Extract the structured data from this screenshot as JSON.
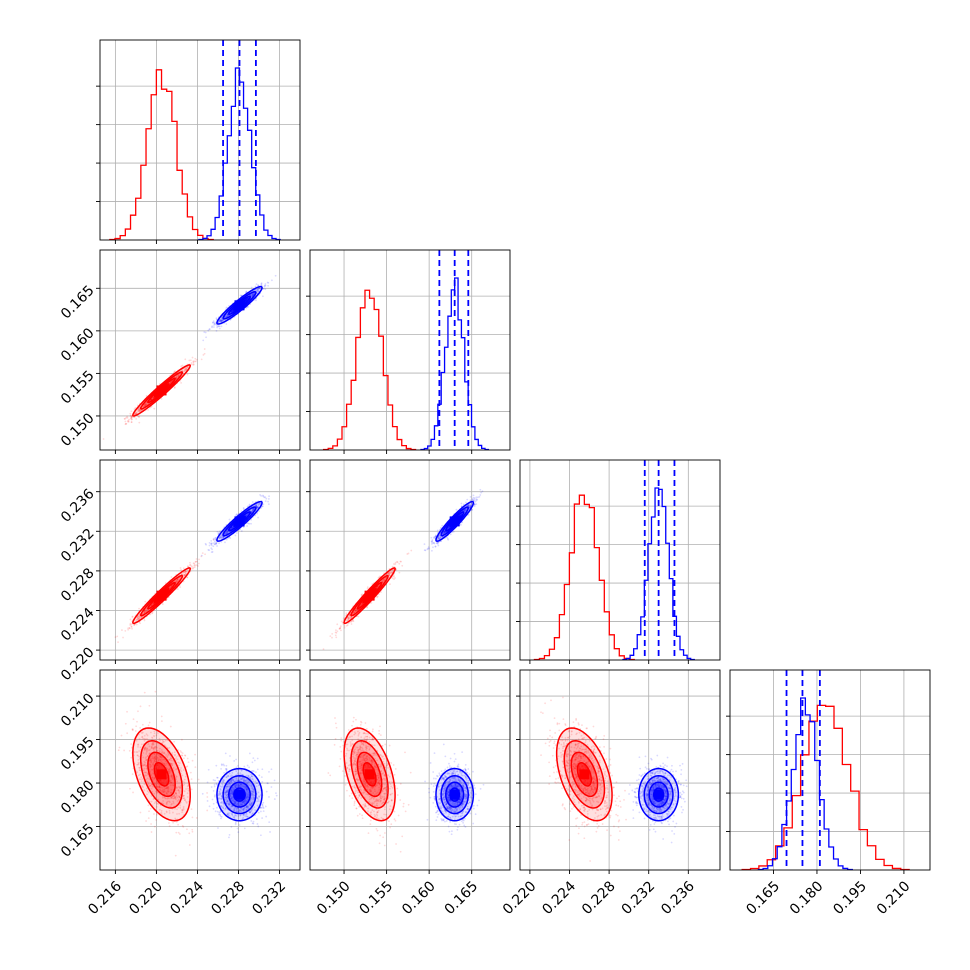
{
  "chart_data": {
    "type": "corner",
    "parameters": [
      "",
      "",
      "",
      ""
    ],
    "series": [
      {
        "name": "",
        "color": "#ff0000",
        "means": [
          0.2205,
          0.153,
          0.2255,
          0.183
        ],
        "sds": [
          0.0014,
          0.0015,
          0.0014,
          0.008
        ],
        "corr": [
          [
            1.0,
            0.97,
            0.97,
            -0.45
          ],
          [
            0.97,
            1.0,
            0.97,
            -0.45
          ],
          [
            0.97,
            0.97,
            1.0,
            -0.45
          ],
          [
            -0.45,
            -0.45,
            -0.45,
            1.0
          ]
        ]
      },
      {
        "name": "",
        "color": "#0000ff",
        "means": [
          0.2281,
          0.163,
          0.233,
          0.176
        ],
        "sds": [
          0.0011,
          0.0011,
          0.001,
          0.0045
        ],
        "corr": [
          [
            1.0,
            0.94,
            0.94,
            0.0
          ],
          [
            0.94,
            1.0,
            0.94,
            0.0
          ],
          [
            0.94,
            0.94,
            1.0,
            0.0
          ],
          [
            0.0,
            0.0,
            0.0,
            1.0
          ]
        ]
      }
    ],
    "quantile_lines": {
      "series_color": "#0000ff",
      "values": [
        [
          0.2265,
          0.2281,
          0.2297
        ],
        [
          0.1612,
          0.163,
          0.1646
        ],
        [
          0.2316,
          0.233,
          0.2346
        ],
        [
          0.1695,
          0.175,
          0.181
        ]
      ]
    },
    "axes": [
      {
        "range": [
          0.2145,
          0.234
        ],
        "ticks": [
          "0.216",
          "0.220",
          "0.224",
          "0.228",
          "0.232"
        ]
      },
      {
        "range": [
          0.146,
          0.1695
        ],
        "ticks": [
          "0.150",
          "0.155",
          "0.160",
          "0.165"
        ]
      },
      {
        "range": [
          0.219,
          0.2392
        ],
        "ticks": [
          "0.220",
          "0.224",
          "0.228",
          "0.232",
          "0.236"
        ]
      },
      {
        "range": [
          0.15,
          0.219
        ],
        "ticks": [
          "0.165",
          "0.180",
          "0.195",
          "0.210"
        ]
      }
    ],
    "grid": true,
    "legend": "none"
  }
}
